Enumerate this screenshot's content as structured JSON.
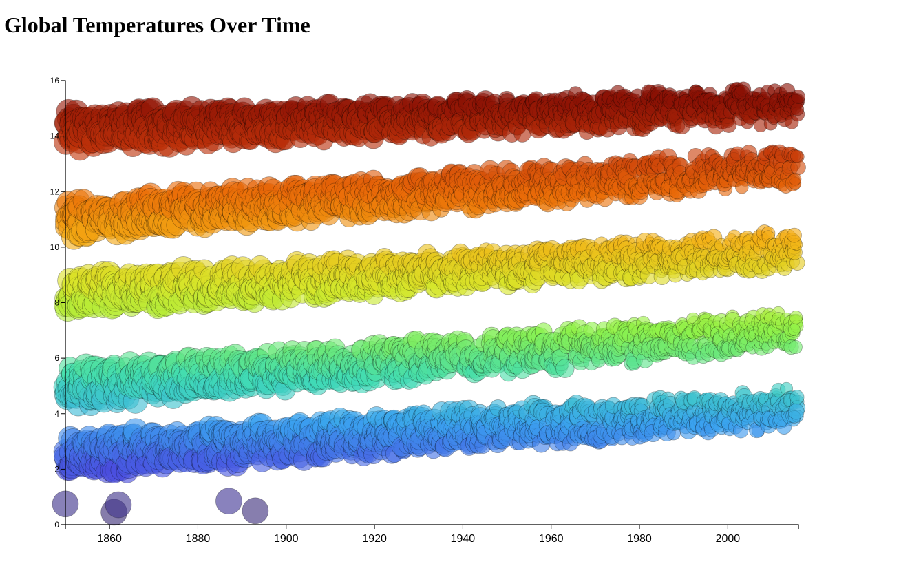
{
  "page": {
    "title": "Global Temperatures Over Time"
  },
  "chart_data": {
    "type": "scatter",
    "title": "Global Temperatures Over Time",
    "xlabel": "",
    "ylabel": "",
    "xlim": [
      1850,
      2016
    ],
    "ylim": [
      0,
      16
    ],
    "x_ticks": [
      1860,
      1880,
      1900,
      1920,
      1940,
      1960,
      1980,
      2000
    ],
    "y_ticks": [
      0,
      2,
      4,
      6,
      8,
      10,
      12,
      14,
      16
    ],
    "grid": false,
    "legend": "none",
    "color_scale": "turbo-like by temperature (dark purple = coldest, dark red = warmest)",
    "color_stops": [
      "#3b2a6e",
      "#4a4ee0",
      "#3aa3f0",
      "#40dcb4",
      "#8ef24a",
      "#d8e62a",
      "#f4b014",
      "#ea6a08",
      "#c0330a",
      "#8a1105"
    ],
    "point_radius_encoding": "uncertainty (larger radius = greater uncertainty, shrinking over time)",
    "series": [
      {
        "name": "",
        "band": "max",
        "y_at_1850": 14.2,
        "y_at_2016": 15.1,
        "spread": 0.55
      },
      {
        "name": "",
        "band": "high",
        "y_at_1850": 11.0,
        "y_at_2016": 12.9,
        "spread": 0.55
      },
      {
        "name": "",
        "band": "mid",
        "y_at_1850": 8.3,
        "y_at_2016": 9.9,
        "spread": 0.55
      },
      {
        "name": "",
        "band": "low",
        "y_at_1850": 5.0,
        "y_at_2016": 7.0,
        "spread": 0.6
      },
      {
        "name": "",
        "band": "min",
        "y_at_1850": 2.5,
        "y_at_2016": 4.2,
        "spread": 0.6
      }
    ],
    "cold_outliers": [
      {
        "x": 1850,
        "y": 0.75
      },
      {
        "x": 1861,
        "y": 0.45
      },
      {
        "x": 1862,
        "y": 0.72
      },
      {
        "x": 1887,
        "y": 0.85
      },
      {
        "x": 1893,
        "y": 0.5
      }
    ]
  }
}
